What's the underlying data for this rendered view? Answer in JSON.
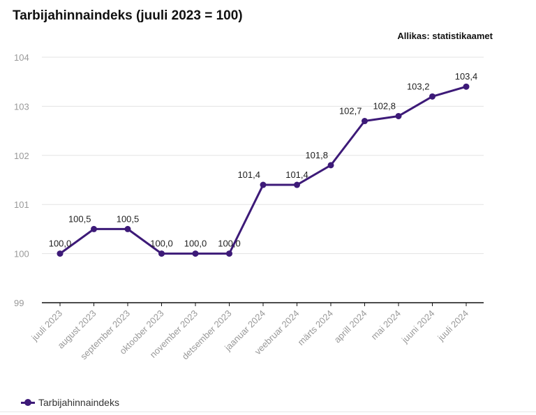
{
  "chart_data": {
    "type": "line",
    "title": "Tarbijahinnaindeks (juuli 2023 = 100)",
    "source": "Allikas: statistikaamet",
    "categories": [
      "juuli 2023",
      "august 2023",
      "september 2023",
      "oktoober 2023",
      "november 2023",
      "detsember 2023",
      "jaanuar 2024",
      "veebruar 2024",
      "märts 2024",
      "aprill 2024",
      "mai 2024",
      "juuni 2024",
      "juuli 2024"
    ],
    "series": [
      {
        "name": "Tarbijahinnaindeks",
        "values": [
          100.0,
          100.5,
          100.5,
          100.0,
          100.0,
          100.0,
          101.4,
          101.4,
          101.8,
          102.7,
          102.8,
          103.2,
          103.4
        ],
        "labels": [
          "100,0",
          "100,5",
          "100,5",
          "100,0",
          "100,0",
          "100,0",
          "101,4",
          "101,4",
          "101,8",
          "102,7",
          "102,8",
          "103,2",
          "103,4"
        ]
      }
    ],
    "ylim": [
      99,
      104
    ],
    "yticks": [
      99,
      100,
      101,
      102,
      103,
      104
    ],
    "grid": true,
    "legend_position": "bottom-left",
    "color": "#3d1a78"
  }
}
